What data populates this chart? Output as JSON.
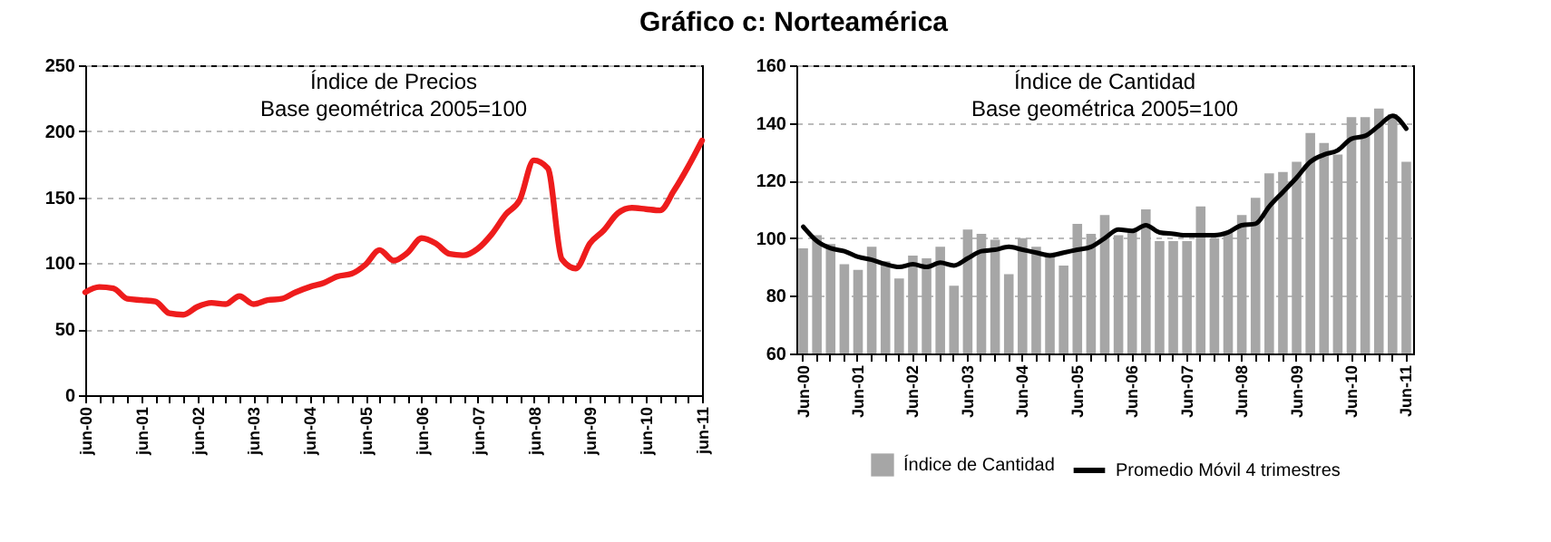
{
  "chart_data": [
    {
      "type": "line",
      "title": "Gráfico c: Norteamérica",
      "annotations": [
        "Índice de Precios",
        "Base geométrica 2005=100"
      ],
      "categories": [
        "jun-00",
        null,
        null,
        null,
        "jun-01",
        null,
        null,
        null,
        "jun-02",
        null,
        null,
        null,
        "jun-03",
        null,
        null,
        null,
        "jun-04",
        null,
        null,
        null,
        "jun-05",
        null,
        null,
        null,
        "jun-06",
        null,
        null,
        null,
        "jun-07",
        null,
        null,
        null,
        "jun-08",
        null,
        null,
        null,
        "jun-09",
        null,
        null,
        null,
        "jun-10",
        null,
        null,
        null,
        "jun-11"
      ],
      "series": [
        {
          "color": "#ee1c1c",
          "values": [
            78,
            82,
            81,
            73,
            72,
            71,
            62,
            61,
            67,
            70,
            69,
            75,
            69,
            72,
            73,
            78,
            82,
            85,
            90,
            92,
            99,
            110,
            102,
            108,
            119,
            115,
            107,
            106,
            111,
            122,
            137,
            148,
            178,
            172,
            103,
            96,
            115,
            125,
            138,
            142,
            141,
            140,
            155,
            173,
            193
          ]
        }
      ],
      "ylim": [
        0,
        250
      ],
      "yticks": [
        0,
        50,
        100,
        150,
        200,
        250
      ],
      "grid": "y"
    },
    {
      "type": "bar",
      "annotations": [
        "Índice de Cantidad",
        "Base geométrica 2005=100"
      ],
      "categories": [
        "Jun-00",
        null,
        null,
        null,
        "Jun-01",
        null,
        null,
        null,
        "Jun-02",
        null,
        null,
        null,
        "Jun-03",
        null,
        null,
        null,
        "Jun-04",
        null,
        null,
        null,
        "Jun-05",
        null,
        null,
        null,
        "Jun-06",
        null,
        null,
        null,
        "Jun-07",
        null,
        null,
        null,
        "Jun-08",
        null,
        null,
        null,
        "Jun-09",
        null,
        null,
        null,
        "Jun-10",
        null,
        null,
        null,
        "Jun-11"
      ],
      "series": [
        {
          "name": "Índice de Cantidad",
          "type": "bar",
          "color": "#a6a6a6",
          "values": [
            96.5,
            101,
            98,
            91,
            89,
            97,
            92,
            86,
            94,
            93,
            97,
            83.5,
            103,
            101.5,
            99.5,
            87.5,
            100,
            97,
            95,
            90.5,
            105,
            101.5,
            108,
            101,
            103,
            110,
            99,
            99,
            99,
            111,
            100,
            102,
            108,
            114,
            122.5,
            123,
            126.5,
            136.5,
            133,
            129,
            142,
            142,
            145,
            143,
            126.5
          ]
        },
        {
          "name": "Promedio Móvil 4 trimestres",
          "type": "line",
          "color": "#000000",
          "values": [
            104,
            99,
            96.5,
            95.5,
            93.5,
            92.5,
            91,
            90,
            91,
            90,
            91.5,
            90.5,
            93,
            95.5,
            96,
            97,
            96,
            95,
            94,
            95,
            96,
            97,
            100,
            103,
            102.5,
            104.5,
            102,
            101.5,
            101,
            101,
            101,
            102,
            104.5,
            105,
            111,
            116,
            121,
            126.5,
            129,
            130.5,
            134.5,
            135.5,
            139,
            142.5,
            138
          ]
        }
      ],
      "ylim": [
        60,
        160
      ],
      "yticks": [
        60,
        80,
        100,
        120,
        140,
        160
      ],
      "grid": "y",
      "legend": "bottom"
    }
  ]
}
